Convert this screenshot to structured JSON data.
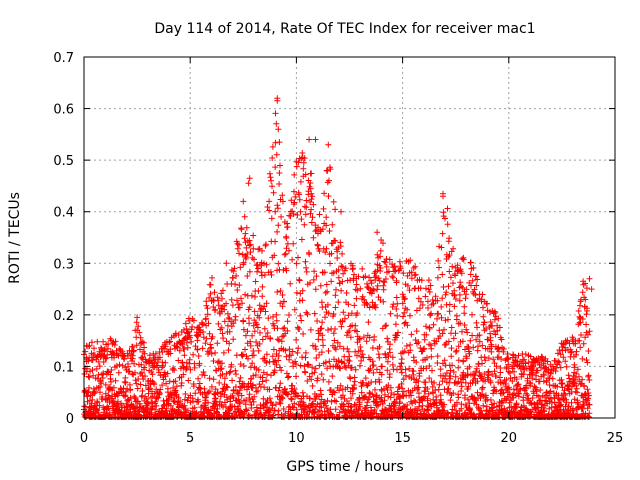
{
  "chart_data": {
    "type": "scatter",
    "title": "Day 114 of 2014, Rate Of TEC Index for receiver mac1",
    "xlabel": "GPS time / hours",
    "ylabel": "ROTI / TECUs",
    "xlim": [
      0,
      25
    ],
    "ylim": [
      0,
      0.7
    ],
    "x_ticks": [
      "0",
      "5",
      "10",
      "15",
      "20",
      "25"
    ],
    "y_ticks": [
      "0",
      "0.1",
      "0.2",
      "0.3",
      "0.4",
      "0.5",
      "0.6",
      "0.7"
    ],
    "x_tick_values": [
      0,
      5,
      10,
      15,
      20,
      25
    ],
    "y_tick_values": [
      0,
      0.1,
      0.2,
      0.3,
      0.4,
      0.5,
      0.6,
      0.7
    ],
    "grid": true,
    "marker": "+",
    "color": "#ff0000",
    "series_name": "ROTI",
    "envelope": {
      "hours": [
        0,
        0.5,
        1,
        1.5,
        2,
        2.5,
        3,
        3.5,
        4,
        4.5,
        5,
        5.5,
        6,
        6.5,
        7,
        7.5,
        8,
        8.5,
        9,
        9.5,
        10,
        10.5,
        11,
        11.5,
        12,
        12.5,
        13,
        13.5,
        14,
        14.5,
        15,
        15.5,
        16,
        16.5,
        17,
        17.5,
        18,
        18.5,
        19,
        19.5,
        20,
        20.5,
        21,
        21.5,
        22,
        22.5,
        23,
        23.5,
        23.8
      ],
      "max_roti": [
        0.14,
        0.15,
        0.16,
        0.15,
        0.12,
        0.19,
        0.12,
        0.13,
        0.16,
        0.17,
        0.2,
        0.18,
        0.28,
        0.25,
        0.3,
        0.42,
        0.35,
        0.33,
        0.62,
        0.37,
        0.5,
        0.54,
        0.38,
        0.53,
        0.35,
        0.3,
        0.3,
        0.27,
        0.35,
        0.33,
        0.3,
        0.32,
        0.26,
        0.28,
        0.44,
        0.3,
        0.32,
        0.28,
        0.22,
        0.2,
        0.12,
        0.13,
        0.12,
        0.12,
        0.11,
        0.15,
        0.16,
        0.27,
        0.25
      ]
    },
    "outliers": [
      {
        "x": 9.1,
        "y": 0.62
      },
      {
        "x": 9.1,
        "y": 0.615
      },
      {
        "x": 9.15,
        "y": 0.56
      },
      {
        "x": 9.2,
        "y": 0.535
      },
      {
        "x": 9.2,
        "y": 0.475
      },
      {
        "x": 10.6,
        "y": 0.54
      },
      {
        "x": 10.9,
        "y": 0.54
      },
      {
        "x": 11.5,
        "y": 0.53
      },
      {
        "x": 10.3,
        "y": 0.505
      },
      {
        "x": 10.35,
        "y": 0.495
      },
      {
        "x": 7.8,
        "y": 0.465
      },
      {
        "x": 7.75,
        "y": 0.455
      },
      {
        "x": 7.5,
        "y": 0.42
      },
      {
        "x": 10.7,
        "y": 0.435
      },
      {
        "x": 10.75,
        "y": 0.43
      },
      {
        "x": 16.9,
        "y": 0.435
      },
      {
        "x": 16.9,
        "y": 0.43
      },
      {
        "x": 9.0,
        "y": 0.4
      },
      {
        "x": 10.2,
        "y": 0.4
      },
      {
        "x": 10.4,
        "y": 0.41
      },
      {
        "x": 2.5,
        "y": 0.195
      },
      {
        "x": 2.5,
        "y": 0.17
      },
      {
        "x": 23.5,
        "y": 0.265
      },
      {
        "x": 23.8,
        "y": 0.27
      },
      {
        "x": 23.9,
        "y": 0.25
      },
      {
        "x": 6.7,
        "y": 0.3
      },
      {
        "x": 13.8,
        "y": 0.36
      },
      {
        "x": 12.1,
        "y": 0.4
      }
    ]
  }
}
